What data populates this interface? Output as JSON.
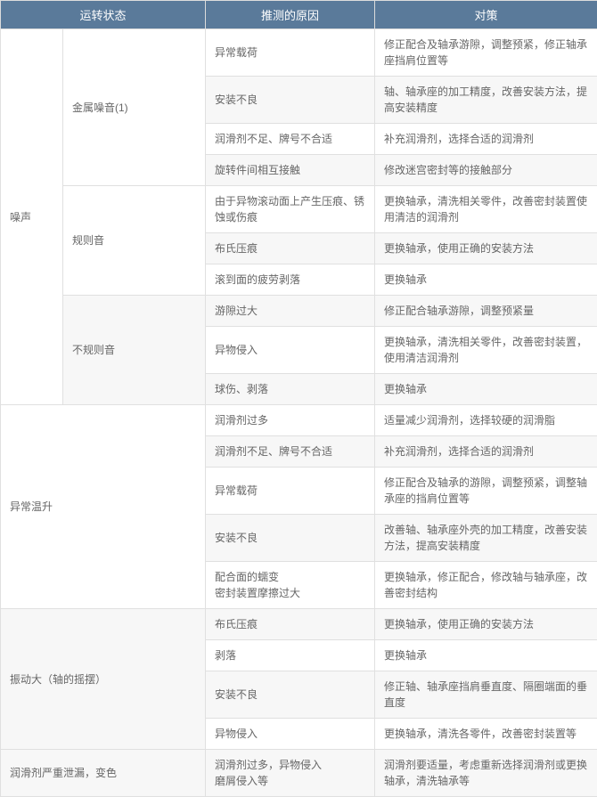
{
  "table": {
    "header_bg": "#5a7a9a",
    "header_color": "#ffffff",
    "border_color": "#e0e0e0",
    "alt_row_bg": "#f7f7f7",
    "text_color": "#666666",
    "font_size": 12,
    "columns": [
      {
        "label": "运转状态",
        "span": 2
      },
      {
        "label": "推测的原因",
        "span": 1
      },
      {
        "label": "对策",
        "span": 1
      }
    ],
    "groups": [
      {
        "label": "噪声",
        "subgroups": [
          {
            "label": "金属噪音(1)",
            "rows": [
              {
                "cause": "异常载荷",
                "action": "修正配合及轴承游隙，调整预紧，修正轴承座挡肩位置等"
              },
              {
                "cause": "安装不良",
                "action": "轴、轴承座的加工精度，改善安装方法，提高安装精度"
              },
              {
                "cause": "润滑剂不足、牌号不合适",
                "action": "补充润滑剂，选择合适的润滑剂"
              },
              {
                "cause": "旋转件间相互接触",
                "action": "修改迷宫密封等的接触部分"
              }
            ]
          },
          {
            "label": "规则音",
            "rows": [
              {
                "cause": "由于异物滚动面上产生压痕、锈蚀或伤痕",
                "action": "更换轴承，清洗相关零件，改善密封装置使用清洁的润滑剂"
              },
              {
                "cause": "布氏压痕",
                "action": "更换轴承，使用正确的安装方法"
              },
              {
                "cause": "滚到面的疲劳剥落",
                "action": "更换轴承"
              }
            ]
          },
          {
            "label": "不规则音",
            "rows": [
              {
                "cause": "游隙过大",
                "action": "修正配合轴承游隙，调整预紧量"
              },
              {
                "cause": "异物侵入",
                "action": "更换轴承，清洗相关零件，改善密封装置，使用清洁润滑剂"
              },
              {
                "cause": "球伤、剥落",
                "action": "更换轴承"
              }
            ]
          }
        ]
      },
      {
        "label": "异常温升",
        "span_full": true,
        "rows": [
          {
            "cause": "润滑剂过多",
            "action": "适量减少润滑剂，选择较硬的润滑脂"
          },
          {
            "cause": "润滑剂不足、牌号不合适",
            "action": "补充润滑剂，选择合适的润滑剂"
          },
          {
            "cause": "异常载荷",
            "action": "修正配合及轴承的游隙，调整预紧，调整轴承座的挡肩位置等"
          },
          {
            "cause": "安装不良",
            "action": "改善轴、轴承座外壳的加工精度，改善安装方法，提高安装精度"
          },
          {
            "cause": "配合面的蠕变\n密封装置摩擦过大",
            "action": "更换轴承，修正配合，修改轴与轴承座，改善密封结构"
          }
        ]
      },
      {
        "label": "振动大（轴的摇摆）",
        "span_full": true,
        "rows": [
          {
            "cause": "布氏压痕",
            "action": "更换轴承，使用正确的安装方法"
          },
          {
            "cause": "剥落",
            "action": "更换轴承"
          },
          {
            "cause": "安装不良",
            "action": "修正轴、轴承座挡肩垂直度、隔圈端面的垂直度"
          },
          {
            "cause": "异物侵入",
            "action": "更换轴承，清洗各零件，改善密封装置等"
          }
        ]
      },
      {
        "label": "润滑剂严重泄漏，变色",
        "span_full": true,
        "rows": [
          {
            "cause": "润滑剂过多，异物侵入\n磨屑侵入等",
            "action": "润滑剂要适量，考虑重新选择润滑剂或更换轴承，清洗轴承等"
          }
        ]
      }
    ]
  }
}
